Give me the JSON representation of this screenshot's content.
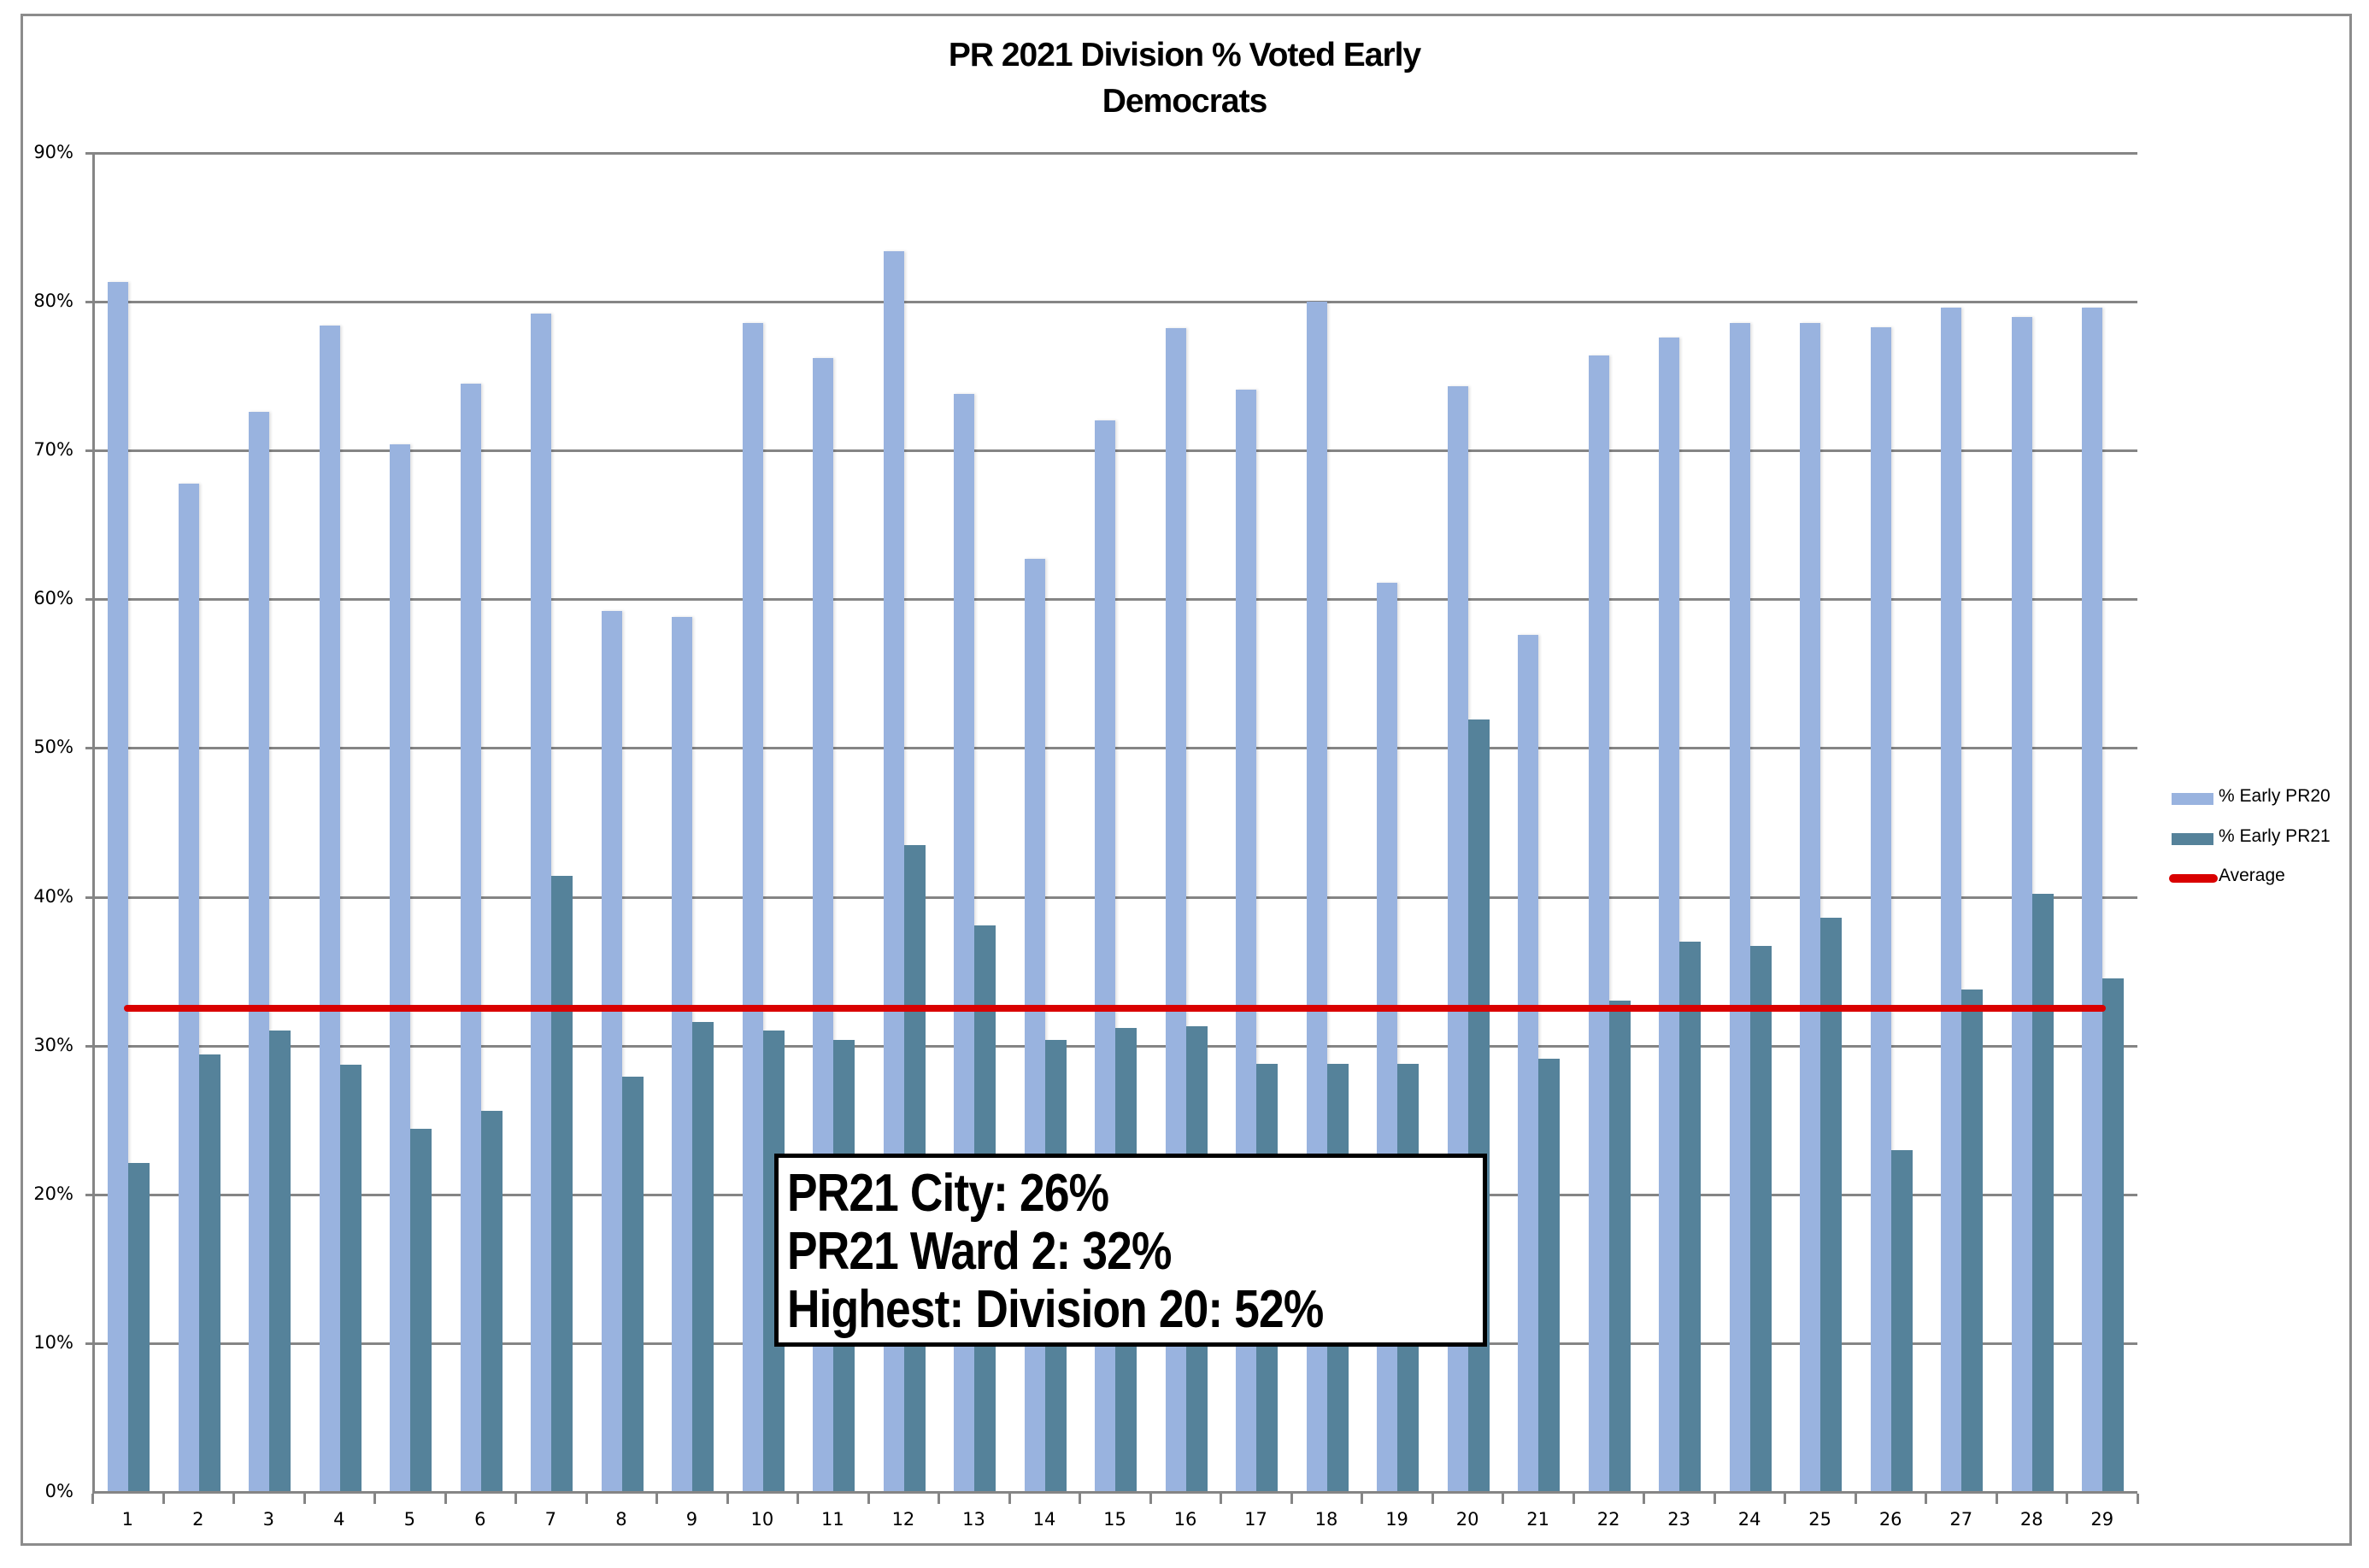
{
  "title": {
    "line1": "PR 2021 Division % Voted Early",
    "line2": "Democrats"
  },
  "colors": {
    "pr20": "#99b3df",
    "pr21": "#55829a",
    "average": "#d90000",
    "grid": "#858585"
  },
  "legend": {
    "items": [
      {
        "label": "% Early PR20",
        "type": "bar",
        "color": "#99b3df"
      },
      {
        "label": "% Early PR21",
        "type": "bar",
        "color": "#55829a"
      },
      {
        "label": "Average",
        "type": "line",
        "color": "#d90000"
      }
    ]
  },
  "annotation": {
    "lines": [
      "PR21 City:  26%",
      "PR21 Ward 2:  32%",
      "Highest:  Division 20:  52%"
    ]
  },
  "chart_data": {
    "type": "bar",
    "title": "PR 2021 Division % Voted Early\nDemocrats",
    "xlabel": "",
    "ylabel": "",
    "ylim": [
      0,
      90
    ],
    "yticks": [
      "0%",
      "10%",
      "20%",
      "30%",
      "40%",
      "50%",
      "60%",
      "70%",
      "80%",
      "90%"
    ],
    "grid": true,
    "legend_position": "right",
    "categories": [
      "1",
      "2",
      "3",
      "4",
      "5",
      "6",
      "7",
      "8",
      "9",
      "10",
      "11",
      "12",
      "13",
      "14",
      "15",
      "16",
      "17",
      "18",
      "19",
      "20",
      "21",
      "22",
      "23",
      "24",
      "25",
      "26",
      "27",
      "28",
      "29"
    ],
    "series": [
      {
        "name": "% Early PR20",
        "type": "bar",
        "values": [
          81.3,
          67.8,
          72.6,
          78.4,
          70.4,
          74.5,
          79.2,
          59.2,
          58.8,
          78.6,
          76.2,
          83.4,
          73.8,
          62.7,
          72.0,
          78.2,
          74.1,
          80.0,
          61.1,
          74.3,
          57.6,
          76.4,
          77.6,
          78.6,
          78.6,
          78.3,
          79.6,
          79.0,
          79.6
        ]
      },
      {
        "name": "% Early PR21",
        "type": "bar",
        "values": [
          22.1,
          29.4,
          31.0,
          28.7,
          24.4,
          25.6,
          41.4,
          27.9,
          31.6,
          31.0,
          30.4,
          43.5,
          38.1,
          30.4,
          31.2,
          31.3,
          28.8,
          28.8,
          28.8,
          51.9,
          29.1,
          33.0,
          37.0,
          36.7,
          38.6,
          23.0,
          33.8,
          40.2,
          34.5
        ]
      },
      {
        "name": "Average",
        "type": "line",
        "values": [
          32.5,
          32.5,
          32.5,
          32.5,
          32.5,
          32.5,
          32.5,
          32.5,
          32.5,
          32.5,
          32.5,
          32.5,
          32.5,
          32.5,
          32.5,
          32.5,
          32.5,
          32.5,
          32.5,
          32.5,
          32.5,
          32.5,
          32.5,
          32.5,
          32.5,
          32.5,
          32.5,
          32.5,
          32.5
        ]
      }
    ],
    "annotations": [
      "PR21 City:  26%",
      "PR21 Ward 2:  32%",
      "Highest:  Division 20:  52%"
    ]
  }
}
